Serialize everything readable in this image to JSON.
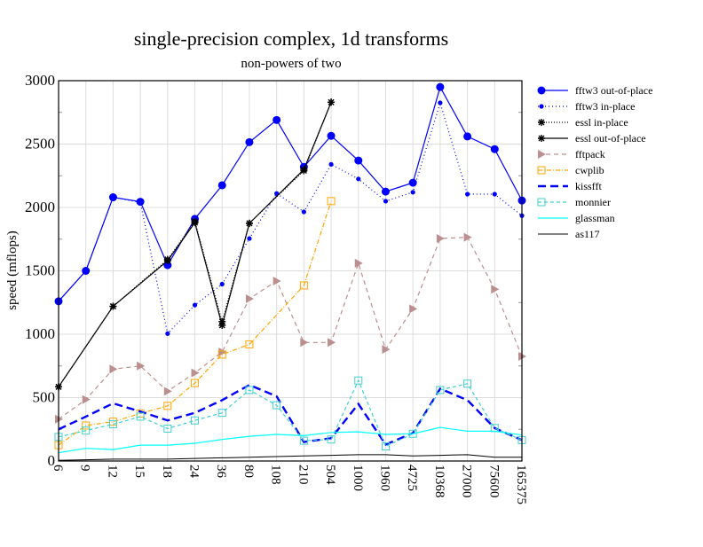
{
  "chart_data": {
    "type": "line",
    "title": "single-precision complex, 1d transforms",
    "subtitle": "non-powers of two",
    "xlabel": "",
    "ylabel": "speed (mflops)",
    "ylim": [
      0,
      3000
    ],
    "yticks": [
      "0",
      "500",
      "1000",
      "1500",
      "2000",
      "2500",
      "3000"
    ],
    "grid": true,
    "legend_position": "right",
    "categories": [
      "6",
      "9",
      "12",
      "15",
      "18",
      "24",
      "36",
      "80",
      "108",
      "210",
      "504",
      "1000",
      "1960",
      "4725",
      "10368",
      "27000",
      "75600",
      "165375"
    ],
    "series": [
      {
        "name": "fftw3 out-of-place",
        "color": "#0000ff",
        "dash": "",
        "width": 1.2,
        "marker": "bigdot",
        "values": [
          1260,
          1500,
          2080,
          2045,
          1545,
          1910,
          2175,
          2515,
          2690,
          2320,
          2565,
          2370,
          2125,
          2195,
          2950,
          2560,
          2460,
          2055
        ]
      },
      {
        "name": "fftw3 in-place",
        "color": "#0000ff",
        "dash": "1,3",
        "width": 1.2,
        "marker": "dot",
        "values": [
          1260,
          1500,
          2080,
          2040,
          1005,
          1230,
          1395,
          1755,
          2110,
          1965,
          2340,
          2225,
          2050,
          2120,
          2825,
          2105,
          2105,
          1935
        ]
      },
      {
        "name": "essl in-place",
        "color": "#000000",
        "dash": "1,2",
        "width": 1.2,
        "marker": "star",
        "values": [
          585,
          null,
          1220,
          null,
          1590,
          1890,
          1100,
          1875,
          null,
          2290,
          2830,
          null,
          null,
          null,
          null,
          null,
          null,
          null
        ]
      },
      {
        "name": "essl out-of-place",
        "color": "#000000",
        "dash": "",
        "width": 1.2,
        "marker": "star",
        "values": [
          585,
          null,
          1220,
          null,
          1580,
          1880,
          1070,
          1875,
          null,
          2300,
          2830,
          null,
          null,
          null,
          null,
          null,
          null,
          null
        ]
      },
      {
        "name": "fftpack",
        "color": "#bc8f8f",
        "dash": "5,4",
        "width": 1.2,
        "marker": "triangle",
        "values": [
          330,
          485,
          725,
          750,
          550,
          695,
          860,
          1280,
          1420,
          935,
          935,
          1560,
          880,
          1200,
          1755,
          1765,
          1355,
          825
        ]
      },
      {
        "name": "cwplib",
        "color": "#ffa500",
        "dash": "5,2,1,2",
        "width": 1.2,
        "marker": "square",
        "values": [
          125,
          280,
          310,
          375,
          435,
          615,
          840,
          920,
          null,
          1385,
          2050,
          null,
          null,
          null,
          null,
          null,
          null,
          null
        ]
      },
      {
        "name": "kissfft",
        "color": "#0000ff",
        "dash": "9,5",
        "width": 2.4,
        "marker": "none",
        "values": [
          250,
          350,
          455,
          390,
          320,
          380,
          480,
          600,
          510,
          150,
          180,
          450,
          130,
          220,
          570,
          480,
          260,
          165
        ]
      },
      {
        "name": "monnier",
        "color": "#40d0d0",
        "dash": "4,3",
        "width": 1.2,
        "marker": "square",
        "values": [
          190,
          240,
          290,
          350,
          255,
          320,
          380,
          560,
          440,
          160,
          170,
          635,
          115,
          215,
          560,
          610,
          260,
          165
        ]
      },
      {
        "name": "glassman",
        "color": "#00ffff",
        "dash": "",
        "width": 1.2,
        "marker": "none",
        "values": [
          65,
          100,
          90,
          125,
          125,
          140,
          170,
          195,
          210,
          200,
          225,
          230,
          210,
          215,
          265,
          235,
          235,
          205
        ]
      },
      {
        "name": "as117",
        "color": "#000000",
        "dash": "",
        "width": 1,
        "marker": "none",
        "values": [
          5,
          10,
          15,
          15,
          15,
          20,
          25,
          30,
          35,
          40,
          45,
          50,
          50,
          40,
          45,
          50,
          30,
          30
        ]
      }
    ]
  }
}
